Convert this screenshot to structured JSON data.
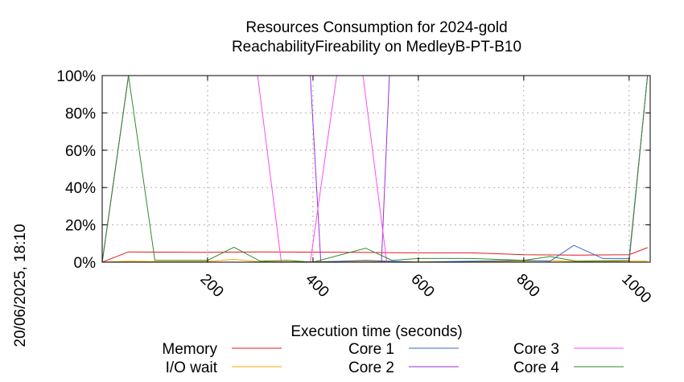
{
  "chart_data": {
    "type": "line",
    "title_line1": "Resources Consumption for 2024-gold",
    "title_line2": "ReachabilityFireability on MedleyB-PT-B10",
    "xlabel": "Execution time (seconds)",
    "ylabel": "",
    "side_label": "20/06/2025, 18:10",
    "xlim": [
      0,
      1040
    ],
    "ylim": [
      0,
      100
    ],
    "x_ticks": [
      200,
      400,
      600,
      800,
      1000
    ],
    "y_ticks": [
      0,
      20,
      40,
      60,
      80,
      100
    ],
    "y_tick_labels": [
      "0%",
      "20%",
      "40%",
      "60%",
      "80%",
      "100%"
    ],
    "grid": true,
    "legend_position": "bottom",
    "series": [
      {
        "name": "Memory",
        "color": "#e41a1c",
        "points": [
          [
            0,
            0
          ],
          [
            50,
            5.5
          ],
          [
            100,
            5.4
          ],
          [
            200,
            5.3
          ],
          [
            300,
            5.5
          ],
          [
            400,
            5.4
          ],
          [
            500,
            5.2
          ],
          [
            600,
            5
          ],
          [
            700,
            5
          ],
          [
            800,
            4
          ],
          [
            900,
            3.8
          ],
          [
            1000,
            4
          ],
          [
            1035,
            7.8
          ]
        ]
      },
      {
        "name": "I/O wait",
        "color": "#f6a800",
        "points": [
          [
            0,
            0
          ],
          [
            50,
            0.5
          ],
          [
            100,
            0.3
          ],
          [
            200,
            0.4
          ],
          [
            250,
            1.5
          ],
          [
            300,
            0.2
          ],
          [
            400,
            0.3
          ],
          [
            500,
            0.5
          ],
          [
            600,
            0.2
          ],
          [
            700,
            0.3
          ],
          [
            800,
            0.5
          ],
          [
            850,
            0.8
          ],
          [
            900,
            0.3
          ],
          [
            1000,
            0.5
          ],
          [
            1035,
            0.5
          ]
        ]
      },
      {
        "name": "Core 1",
        "color": "#3c65c8",
        "points": [
          [
            0,
            0
          ],
          [
            50,
            0
          ],
          [
            100,
            0
          ],
          [
            200,
            0
          ],
          [
            300,
            0
          ],
          [
            350,
            0
          ],
          [
            400,
            0
          ],
          [
            500,
            1
          ],
          [
            600,
            0
          ],
          [
            700,
            0.5
          ],
          [
            800,
            1
          ],
          [
            850,
            0.5
          ],
          [
            895,
            9
          ],
          [
            950,
            2
          ],
          [
            1000,
            2
          ],
          [
            1035,
            100
          ]
        ]
      },
      {
        "name": "Core 2",
        "color": "#9b30d9",
        "points": [
          [
            0,
            0
          ],
          [
            50,
            100
          ],
          [
            100,
            100
          ],
          [
            200,
            100
          ],
          [
            300,
            100
          ],
          [
            395,
            100
          ],
          [
            415,
            0
          ],
          [
            530,
            0
          ],
          [
            545,
            100
          ],
          [
            600,
            100
          ],
          [
            700,
            100
          ],
          [
            800,
            100
          ],
          [
            900,
            100
          ],
          [
            1035,
            100
          ]
        ]
      },
      {
        "name": "Core 3",
        "color": "#ff4df0",
        "points": [
          [
            0,
            0
          ],
          [
            50,
            100
          ],
          [
            100,
            100
          ],
          [
            200,
            100
          ],
          [
            295,
            100
          ],
          [
            340,
            0
          ],
          [
            395,
            0
          ],
          [
            445,
            100
          ],
          [
            495,
            100
          ],
          [
            540,
            0
          ],
          [
            600,
            0
          ],
          [
            700,
            0
          ],
          [
            800,
            0
          ],
          [
            900,
            0
          ],
          [
            1000,
            0
          ],
          [
            1035,
            100
          ]
        ]
      },
      {
        "name": "Core 4",
        "color": "#2e8b2e",
        "points": [
          [
            0,
            0
          ],
          [
            50,
            100
          ],
          [
            100,
            1
          ],
          [
            200,
            1
          ],
          [
            250,
            8
          ],
          [
            300,
            0.5
          ],
          [
            350,
            1
          ],
          [
            400,
            0
          ],
          [
            500,
            7.5
          ],
          [
            550,
            1
          ],
          [
            600,
            2
          ],
          [
            700,
            2
          ],
          [
            800,
            1
          ],
          [
            850,
            3
          ],
          [
            900,
            0.5
          ],
          [
            1000,
            1
          ],
          [
            1035,
            100
          ]
        ]
      }
    ]
  }
}
